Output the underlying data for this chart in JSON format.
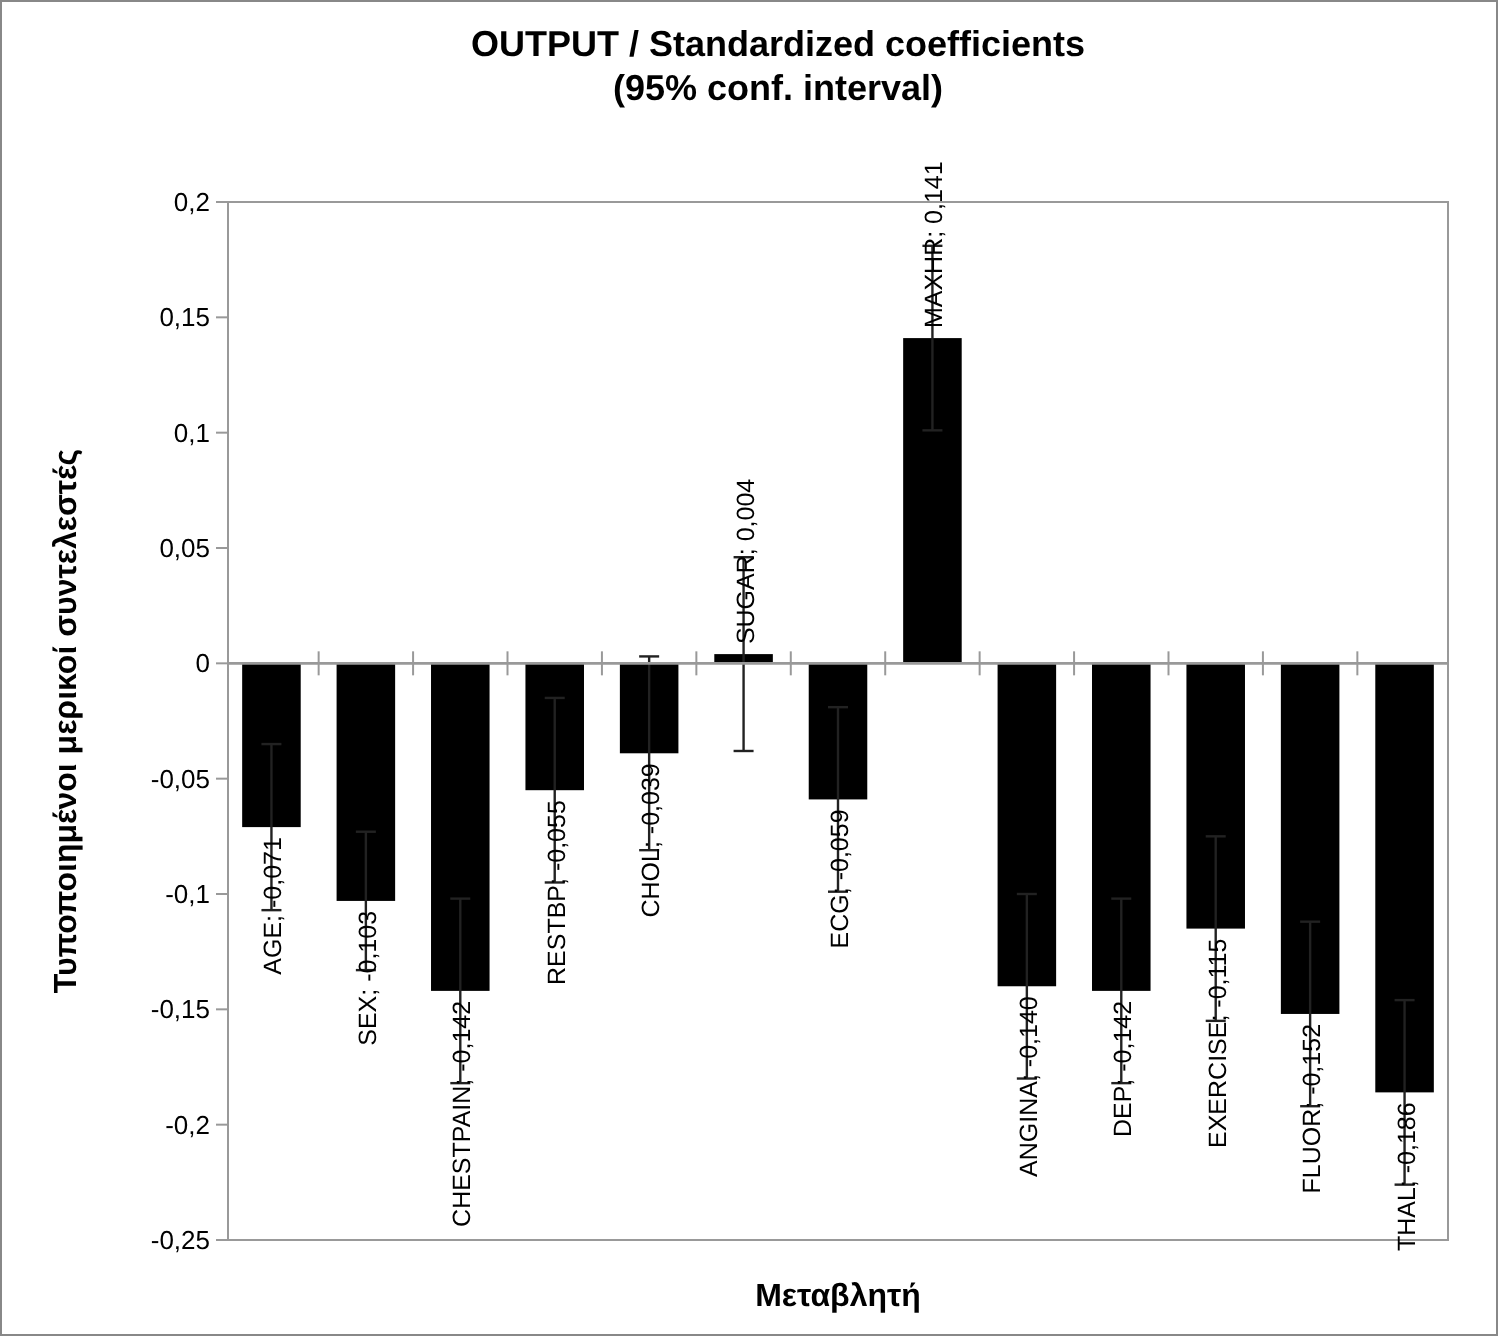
{
  "chart_data": {
    "type": "bar",
    "title": "OUTPUT / Standardized coefficients (95% conf. interval)",
    "xlabel": "Μεταβλητή",
    "ylabel": "Τυποποιημένοι μερικοί συντελεστές",
    "categories": [
      null,
      null,
      null,
      null,
      null,
      null,
      null,
      null,
      null,
      null,
      null,
      null,
      null
    ],
    "values": [
      -0.071,
      -0.103,
      -0.142,
      -0.055,
      -0.039,
      0.004,
      -0.059,
      0.141,
      -0.14,
      -0.142,
      -0.115,
      -0.152,
      -0.186
    ],
    "errors": [
      0.036,
      0.03,
      0.04,
      0.04,
      0.042,
      0.042,
      0.04,
      0.04,
      0.04,
      0.04,
      0.04,
      0.04,
      0.04
    ],
    "color": "#000000",
    "ylim": [
      -0.25,
      0.2
    ],
    "yticks": [
      {
        "value": -0.25,
        "label": "-0,25"
      },
      {
        "value": -0.2,
        "label": "-0,2"
      },
      {
        "value": -0.15,
        "label": "-0,15"
      },
      {
        "value": -0.1,
        "label": "-0,1"
      },
      {
        "value": -0.05,
        "label": "-0,05"
      },
      0,
      {
        "value": 0.05,
        "label": "0,05"
      },
      {
        "value": 0.1,
        "label": "0,1"
      },
      {
        "value": 0.15,
        "label": "0,15"
      },
      {
        "value": 0.2,
        "label": "0,2"
      }
    ],
    "value_labels": [
      "AGE; -0,071",
      "SEX; -0,103",
      "CHESTPAIN; -0,142",
      "RESTBP; -0,055",
      "CHOL; -0,039",
      "SUGAR; 0,004",
      "ECG; -0,059",
      "MAXHR; 0,141",
      "ANGINA; -0,140",
      "DEP; -0,142",
      "EXERCISE; -0,115",
      "FLUOR; -0,152",
      "THAL; -0,186"
    ],
    "tick_labels": "y"
  }
}
